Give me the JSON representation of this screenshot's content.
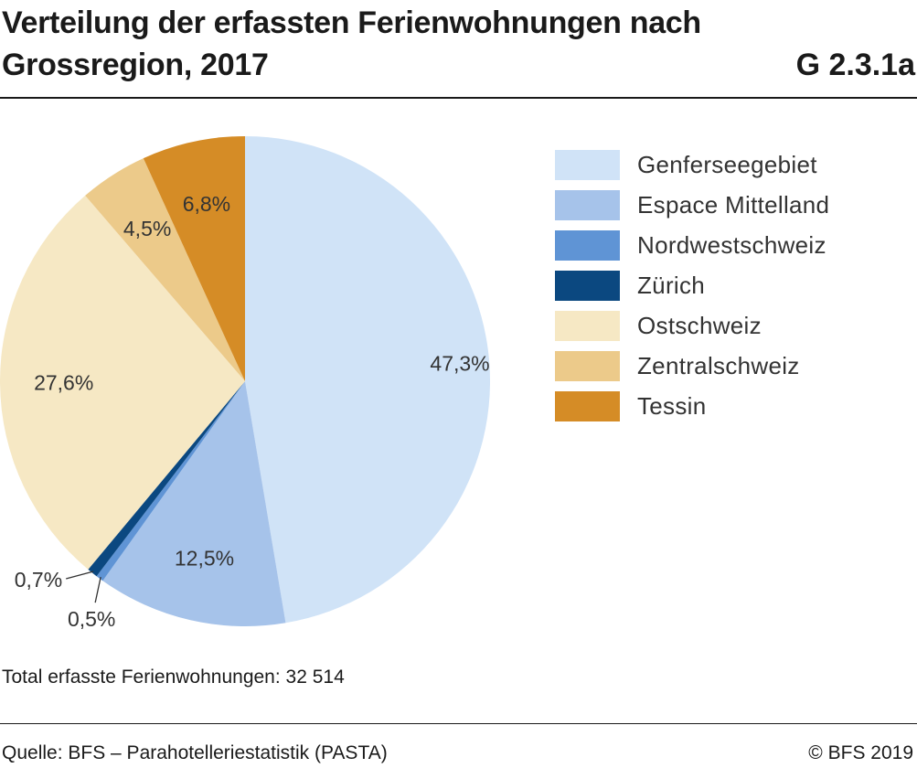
{
  "header": {
    "title": "Verteilung der erfassten Ferienwohnungen nach Grossregion, 2017",
    "figure_id": "G 2.3.1a"
  },
  "chart_data": {
    "type": "pie",
    "title": "Verteilung der erfassten Ferienwohnungen nach Grossregion, 2017",
    "categories": [
      "Genferseegebiet",
      "Espace Mittelland",
      "Nordwestschweiz",
      "Zürich",
      "Ostschweiz",
      "Zentralschweiz",
      "Tessin"
    ],
    "values": [
      47.3,
      12.5,
      0.5,
      0.7,
      27.6,
      4.5,
      6.8
    ],
    "labels": [
      "47,3%",
      "12,5%",
      "0,5%",
      "0,7%",
      "27,6%",
      "4,5%",
      "6,8%"
    ],
    "colors": [
      "#d0e3f7",
      "#a6c3ea",
      "#5f94d5",
      "#0b4880",
      "#f6e8c4",
      "#ecca8a",
      "#d58c26"
    ],
    "start": "12 o'clock",
    "direction": "clockwise",
    "legend_position": "right"
  },
  "notes": {
    "total": "Total erfasste Ferienwohnungen: 32 514"
  },
  "footer": {
    "source": "Quelle: BFS – Parahotelleriestatistik (PASTA)",
    "copyright": "© BFS 2019"
  }
}
